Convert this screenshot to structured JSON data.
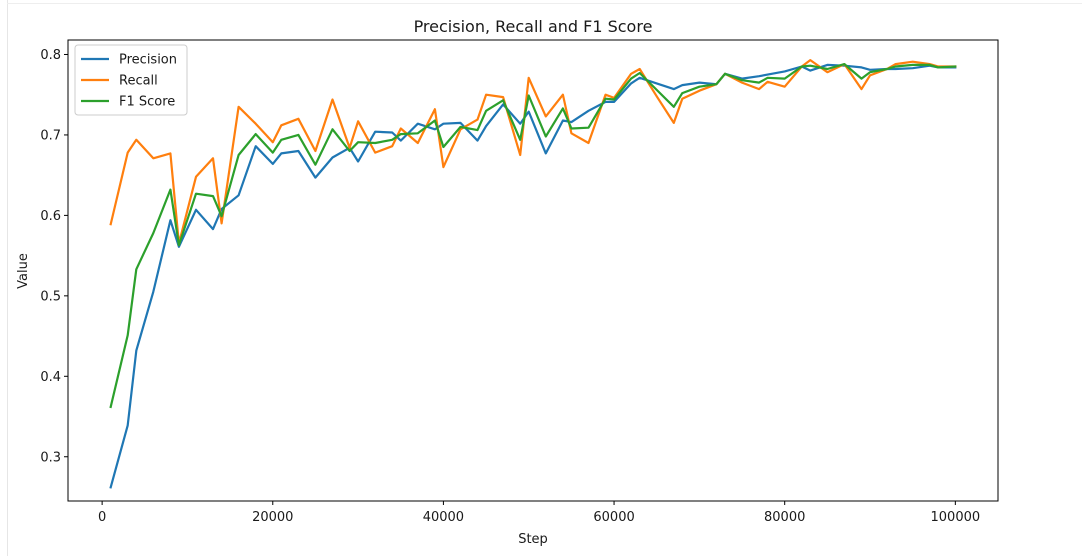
{
  "chart_data": {
    "type": "line",
    "title": "Precision, Recall and F1 Score",
    "xlabel": "Step",
    "ylabel": "Value",
    "xlim": [
      -4000,
      105000
    ],
    "ylim": [
      0.245,
      0.818
    ],
    "xticks": [
      0,
      20000,
      40000,
      60000,
      80000,
      100000
    ],
    "xtick_labels": [
      "0",
      "20000",
      "40000",
      "60000",
      "80000",
      "100000"
    ],
    "yticks": [
      0.3,
      0.4,
      0.5,
      0.6,
      0.7,
      0.8
    ],
    "ytick_labels": [
      "0.3",
      "0.4",
      "0.5",
      "0.6",
      "0.7",
      "0.8"
    ],
    "grid": false,
    "legend": "top-left",
    "x": [
      1000,
      3000,
      4000,
      6000,
      8000,
      9000,
      11000,
      13000,
      14000,
      16000,
      18000,
      20000,
      21000,
      23000,
      25000,
      27000,
      29000,
      30000,
      32000,
      34000,
      35000,
      37000,
      39000,
      40000,
      42000,
      44000,
      45000,
      47000,
      49000,
      50000,
      52000,
      54000,
      55000,
      57000,
      59000,
      60000,
      62000,
      63000,
      65000,
      67000,
      68000,
      70000,
      72000,
      73000,
      75000,
      77000,
      78000,
      80000,
      82000,
      83000,
      85000,
      87000,
      89000,
      90000,
      92000,
      93000,
      95000,
      97000,
      98000,
      100000
    ],
    "series": [
      {
        "name": "Precision",
        "color": "#1f77b4",
        "values": [
          0.262,
          0.339,
          0.432,
          0.505,
          0.594,
          0.561,
          0.607,
          0.583,
          0.608,
          0.625,
          0.686,
          0.664,
          0.677,
          0.68,
          0.647,
          0.672,
          0.684,
          0.667,
          0.704,
          0.703,
          0.693,
          0.714,
          0.707,
          0.714,
          0.715,
          0.693,
          0.711,
          0.738,
          0.714,
          0.729,
          0.677,
          0.718,
          0.716,
          0.73,
          0.741,
          0.741,
          0.764,
          0.771,
          0.764,
          0.757,
          0.762,
          0.765,
          0.763,
          0.776,
          0.77,
          0.773,
          0.775,
          0.779,
          0.785,
          0.78,
          0.787,
          0.786,
          0.784,
          0.781,
          0.782,
          0.782,
          0.783,
          0.786,
          0.784,
          0.784
        ]
      },
      {
        "name": "Recall",
        "color": "#ff7f0e",
        "values": [
          0.589,
          0.678,
          0.694,
          0.671,
          0.677,
          0.565,
          0.648,
          0.671,
          0.59,
          0.735,
          0.714,
          0.691,
          0.712,
          0.72,
          0.68,
          0.744,
          0.684,
          0.717,
          0.678,
          0.686,
          0.708,
          0.69,
          0.732,
          0.66,
          0.707,
          0.719,
          0.75,
          0.747,
          0.675,
          0.771,
          0.723,
          0.75,
          0.702,
          0.69,
          0.75,
          0.746,
          0.776,
          0.782,
          0.748,
          0.715,
          0.745,
          0.755,
          0.763,
          0.776,
          0.765,
          0.757,
          0.766,
          0.76,
          0.785,
          0.793,
          0.778,
          0.788,
          0.757,
          0.774,
          0.782,
          0.788,
          0.791,
          0.788,
          0.785,
          0.785
        ]
      },
      {
        "name": "F1 Score",
        "color": "#2ca02c",
        "values": [
          0.362,
          0.451,
          0.533,
          0.578,
          0.632,
          0.563,
          0.627,
          0.624,
          0.599,
          0.675,
          0.701,
          0.678,
          0.694,
          0.7,
          0.663,
          0.707,
          0.68,
          0.691,
          0.69,
          0.694,
          0.701,
          0.702,
          0.718,
          0.685,
          0.71,
          0.706,
          0.73,
          0.743,
          0.694,
          0.749,
          0.698,
          0.733,
          0.708,
          0.709,
          0.745,
          0.744,
          0.77,
          0.777,
          0.756,
          0.735,
          0.752,
          0.76,
          0.763,
          0.776,
          0.768,
          0.765,
          0.771,
          0.77,
          0.785,
          0.786,
          0.782,
          0.788,
          0.77,
          0.778,
          0.782,
          0.785,
          0.787,
          0.787,
          0.784,
          0.785
        ]
      }
    ]
  }
}
